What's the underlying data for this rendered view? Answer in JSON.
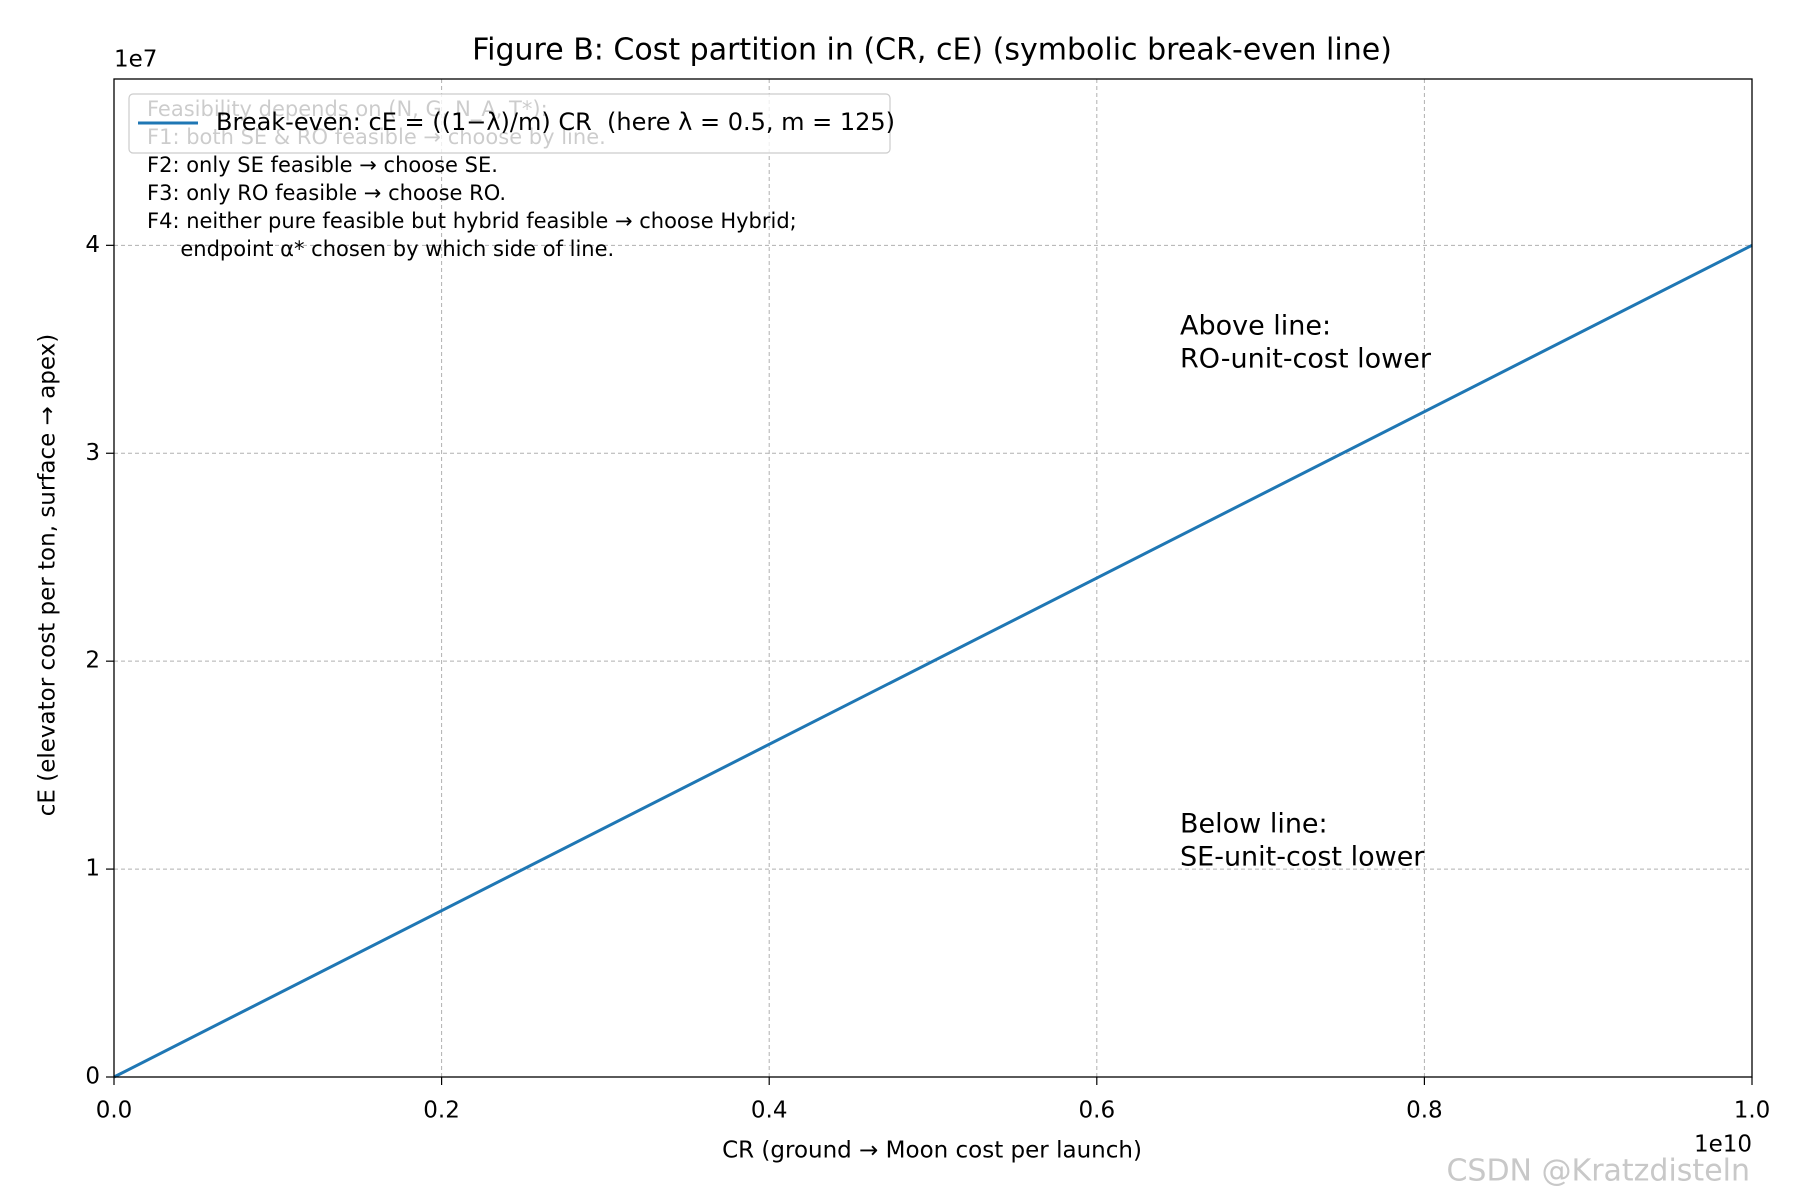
{
  "chart_data": {
    "type": "line",
    "title": "Figure B: Cost partition in (CR, cE) (symbolic break-even line)",
    "xlabel": "CR (ground → Moon cost per launch)",
    "ylabel": "cE (elevator cost per ton, surface → apex)",
    "x_offset": "1e10",
    "y_offset": "1e7",
    "x": [
      0,
      10000000000
    ],
    "series": [
      {
        "name": "Break-even: cE = ((1−λ)/m) CR  (here λ = 0.5, m = 125)",
        "color": "#1f77b4",
        "values": [
          0,
          40000000
        ]
      }
    ],
    "xlim": [
      0,
      10000000000
    ],
    "ylim": [
      0,
      48000000
    ],
    "xticks": [
      {
        "value": 0,
        "label": "0.0"
      },
      {
        "value": 2000000000,
        "label": "0.2"
      },
      {
        "value": 4000000000,
        "label": "0.4"
      },
      {
        "value": 6000000000,
        "label": "0.6"
      },
      {
        "value": 8000000000,
        "label": "0.8"
      },
      {
        "value": 10000000000,
        "label": "1.0"
      }
    ],
    "yticks": [
      {
        "value": 0,
        "label": "0"
      },
      {
        "value": 10000000,
        "label": "1"
      },
      {
        "value": 20000000,
        "label": "2"
      },
      {
        "value": 30000000,
        "label": "3"
      },
      {
        "value": 40000000,
        "label": "4"
      }
    ],
    "grid": true,
    "legend": "upper left",
    "feasibility_note": [
      "Feasibility depends on (N, G, N_A, T*):",
      "F1: both SE & RO feasible → choose by line.",
      "F2: only SE feasible → choose SE.",
      "F3: only RO feasible → choose RO.",
      "F4: neither pure feasible but hybrid feasible → choose Hybrid;",
      "     endpoint α* chosen by which side of line."
    ],
    "above_note": [
      "Above line:",
      "RO-unit-cost lower"
    ],
    "below_note": [
      "Below line:",
      "SE-unit-cost lower"
    ],
    "watermark": "CSDN @Kratzdisteln"
  }
}
